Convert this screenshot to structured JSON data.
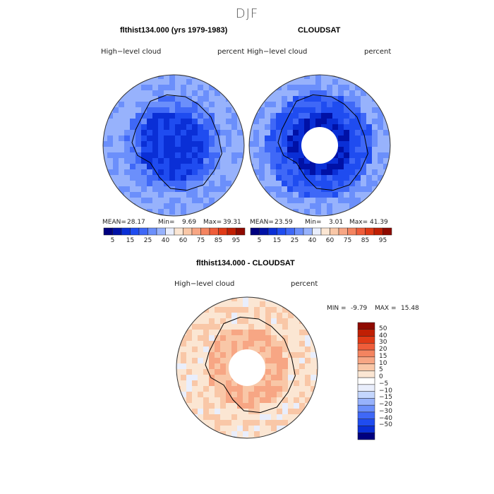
{
  "figure": {
    "title": "DJF"
  },
  "colors": {
    "blue_scale": [
      "#00007f",
      "#0011a6",
      "#0a2fd6",
      "#1f4cf0",
      "#3f68f7",
      "#6b8ffb",
      "#97b2fc",
      "#c4d6fd",
      "#e9eefc"
    ],
    "red_scale": [
      "#fbe6d3",
      "#f9c7a7",
      "#f7a684",
      "#f48460",
      "#ef5d3a",
      "#e03a16",
      "#c01f04",
      "#8f0a00"
    ]
  },
  "chart_data": [
    {
      "type": "heatmap",
      "title": "flthist134.000 (yrs 1979-1983)",
      "left_label": "High−level cloud",
      "right_label": "percent",
      "stats": {
        "mean_label": "MEAN=",
        "mean": "28.17",
        "min_label": "Min=",
        "min": "9.69",
        "max_label": "Max=",
        "max": "39.31"
      },
      "colorbar_ticks": [
        "5",
        "15",
        "25",
        "40",
        "60",
        "75",
        "85",
        "95"
      ],
      "value_range": [
        9.69,
        39.31
      ],
      "mean": 28.17
    },
    {
      "type": "heatmap",
      "title": "CLOUDSAT",
      "left_label": "High−level cloud",
      "right_label": "percent",
      "stats": {
        "mean_label": "MEAN=",
        "mean": "23.59",
        "min_label": "Min=",
        "min": "3.01",
        "max_label": "Max=",
        "max": "41.39"
      },
      "colorbar_ticks": [
        "5",
        "15",
        "25",
        "40",
        "60",
        "75",
        "85",
        "95"
      ],
      "value_range": [
        3.01,
        41.39
      ],
      "mean": 23.59
    },
    {
      "type": "heatmap",
      "title": "flthist134.000 - CLOUDSAT",
      "left_label": "High−level cloud",
      "right_label": "percent",
      "stats": {
        "min_label": "MIN =",
        "min": "-9.79",
        "max_label": "MAX =",
        "max": "15.48"
      },
      "colorbar_ticks": [
        "50",
        "40",
        "30",
        "20",
        "15",
        "10",
        "5",
        "0",
        "−5",
        "−10",
        "−15",
        "−20",
        "−30",
        "−40",
        "−50"
      ],
      "value_range": [
        -9.79,
        15.48
      ]
    }
  ]
}
